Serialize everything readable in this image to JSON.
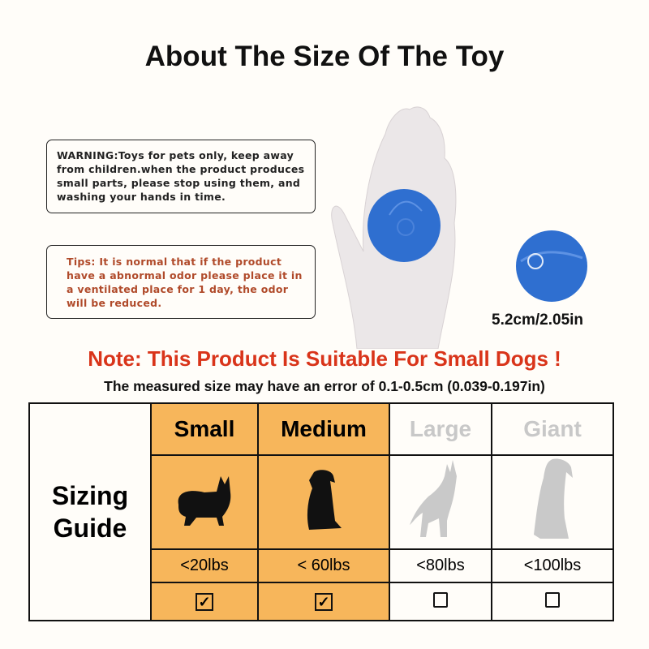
{
  "title": "About The Size Of The Toy",
  "warning": "WARNING:Toys for pets only, keep away from children.when the product produces small parts, please stop using them, and washing your hands in time.",
  "tips": "Tips: It is normal that if the product have a abnormal odor please place it in a ventilated place for 1 day, the odor will be reduced.",
  "ball_size": "5.2cm/2.05in",
  "note": "Note: This Product Is Suitable For Small Dogs !",
  "measure_note": "The measured size may have an error of 0.1-0.5cm (0.039-0.197in)",
  "colors": {
    "highlight": "#f7b65b",
    "note": "#d9341a",
    "tips": "#b04a2a",
    "ball": "#2f6fd0"
  },
  "guide": {
    "label_line1": "Sizing",
    "label_line2": "Guide",
    "sizes": [
      {
        "name": "Small",
        "weight": "<20lbs",
        "suitable": true,
        "icon": "corgi-silhouette-icon"
      },
      {
        "name": "Medium",
        "weight": "< 60lbs",
        "suitable": true,
        "icon": "sitting-dog-silhouette-icon"
      },
      {
        "name": "Large",
        "weight": "<80lbs",
        "suitable": false,
        "icon": "shepherd-dog-silhouette-icon"
      },
      {
        "name": "Giant",
        "weight": "<100lbs",
        "suitable": false,
        "icon": "large-dog-silhouette-icon"
      }
    ]
  }
}
